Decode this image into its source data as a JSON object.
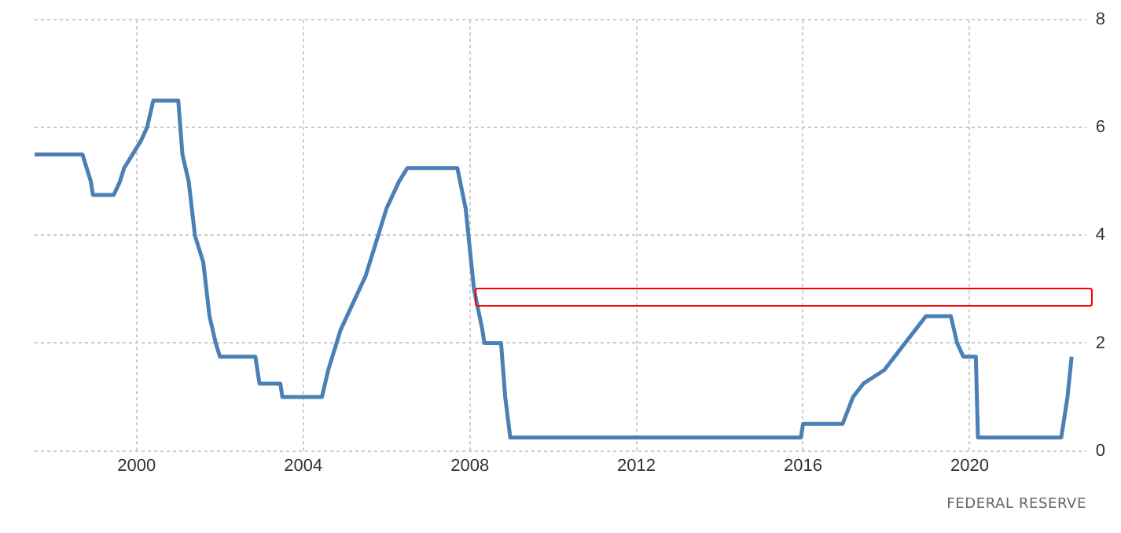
{
  "chart_data": {
    "type": "line",
    "x": [
      1997.55,
      1998.7,
      1998.8,
      1998.9,
      1998.95,
      1999.45,
      1999.6,
      1999.7,
      1999.9,
      2000.1,
      2000.25,
      2000.4,
      2001.0,
      2001.05,
      2001.1,
      2001.25,
      2001.4,
      2001.6,
      2001.75,
      2001.9,
      2002.0,
      2002.85,
      2002.95,
      2003.45,
      2003.5,
      2004.45,
      2004.6,
      2004.9,
      2005.2,
      2005.5,
      2005.8,
      2006.0,
      2006.3,
      2006.5,
      2007.7,
      2007.9,
      2008.1,
      2008.3,
      2008.35,
      2008.75,
      2008.85,
      2008.97,
      2015.95,
      2016.0,
      2016.95,
      2017.2,
      2017.45,
      2017.95,
      2018.2,
      2018.45,
      2018.7,
      2018.95,
      2019.55,
      2019.7,
      2019.85,
      2020.15,
      2020.2,
      2022.2,
      2022.25,
      2022.35,
      2022.45
    ],
    "series": [
      {
        "color": "#4a80b6",
        "values": [
          5.5,
          5.5,
          5.25,
          5.0,
          4.75,
          4.75,
          5.0,
          5.25,
          5.5,
          5.75,
          6.0,
          6.5,
          6.5,
          6.0,
          5.5,
          5.0,
          4.0,
          3.5,
          2.5,
          2.0,
          1.75,
          1.75,
          1.25,
          1.25,
          1.0,
          1.0,
          1.5,
          2.25,
          2.75,
          3.25,
          4.0,
          4.5,
          5.0,
          5.25,
          5.25,
          4.5,
          3.0,
          2.25,
          2.0,
          2.0,
          1.0,
          0.25,
          0.25,
          0.5,
          0.5,
          1.0,
          1.25,
          1.5,
          1.75,
          2.0,
          2.25,
          2.5,
          2.5,
          2.0,
          1.75,
          1.75,
          0.25,
          0.25,
          0.5,
          1.0,
          1.75
        ]
      }
    ],
    "xlim": [
      1997.55,
      2022.8
    ],
    "xticks": [
      2000,
      2004,
      2008,
      2012,
      2016,
      2020
    ],
    "ylim": [
      0,
      8
    ],
    "yticks": [
      0,
      2,
      4,
      6,
      8
    ],
    "grid": true,
    "marker": "none",
    "line_style": "solid",
    "legend": false,
    "annotations": [
      "FEDERAL RESERVE"
    ]
  }
}
